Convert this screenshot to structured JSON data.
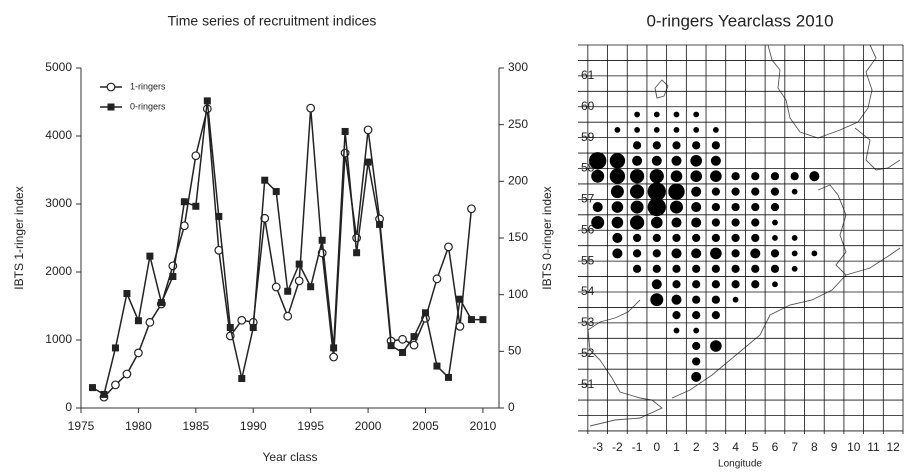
{
  "chart_data": [
    {
      "type": "line",
      "title": "Time series of recruitment indices",
      "xlabel": "Year class",
      "ylabel": "IBTS 1-ringer index",
      "y2label": "IBTS 0-ringer index",
      "x": [
        1976,
        1977,
        1978,
        1979,
        1980,
        1981,
        1982,
        1983,
        1984,
        1985,
        1986,
        1987,
        1988,
        1989,
        1990,
        1991,
        1992,
        1993,
        1994,
        1995,
        1996,
        1997,
        1998,
        1999,
        2000,
        2001,
        2002,
        2003,
        2004,
        2005,
        2006,
        2007,
        2008,
        2009,
        2010
      ],
      "series": [
        {
          "name": "1-ringers",
          "color": "#222222",
          "marker": "circle",
          "axis": "y",
          "values": [
            null,
            160,
            340,
            500,
            810,
            1260,
            1530,
            2090,
            2680,
            3710,
            4400,
            2320,
            1060,
            1290,
            1260,
            2790,
            1780,
            1350,
            1870,
            4410,
            2280,
            750,
            3750,
            2500,
            4090,
            2780,
            985,
            1010,
            925,
            1320,
            1900,
            2370,
            1200,
            2930,
            null
          ]
        },
        {
          "name": "0-ringers",
          "color": "#222222",
          "marker": "square",
          "axis": "y2",
          "values": [
            18,
            12,
            53,
            101,
            77,
            134,
            93,
            116,
            182,
            178,
            271,
            169,
            71,
            26,
            71,
            201,
            191,
            103,
            127,
            107,
            148,
            53,
            244,
            137,
            217,
            162,
            55,
            49,
            63,
            84,
            37,
            27,
            96,
            78,
            78
          ]
        }
      ],
      "xlim": [
        1975,
        2011.4
      ],
      "xticks": [
        1975,
        1980,
        1985,
        1990,
        1995,
        2000,
        2005,
        2010
      ],
      "ylim": [
        0,
        5000
      ],
      "yticks": [
        0,
        1000,
        2000,
        3000,
        4000,
        5000
      ],
      "y2lim": [
        0,
        300
      ],
      "y2ticks": [
        0,
        50,
        100,
        150,
        200,
        250,
        300
      ],
      "legend": "upper left"
    },
    {
      "type": "bubble",
      "title": "0-ringers   Yearclass 2010",
      "xlabel": "Longitude",
      "color": "#000000",
      "xlim": [
        -4,
        12.5
      ],
      "ylim": [
        49.4,
        62
      ],
      "xticks": [
        -3,
        -2,
        -1,
        0,
        1,
        2,
        3,
        4,
        5,
        6,
        7,
        8,
        9,
        10,
        11,
        12
      ],
      "yticks": [
        51,
        52,
        53,
        54,
        55,
        56,
        57,
        58,
        59,
        60,
        61
      ],
      "points": [
        {
          "x": -1,
          "y": 59.75,
          "size": 1
        },
        {
          "x": 0,
          "y": 59.75,
          "size": 1
        },
        {
          "x": 1,
          "y": 59.75,
          "size": 1
        },
        {
          "x": 2,
          "y": 59.75,
          "size": 1
        },
        {
          "x": -2,
          "y": 59.25,
          "size": 1
        },
        {
          "x": -1,
          "y": 59.25,
          "size": 1
        },
        {
          "x": 0,
          "y": 59.25,
          "size": 1
        },
        {
          "x": 1,
          "y": 59.25,
          "size": 1
        },
        {
          "x": 2,
          "y": 59.25,
          "size": 1
        },
        {
          "x": 3,
          "y": 59.25,
          "size": 1
        },
        {
          "x": -1,
          "y": 58.75,
          "size": 2
        },
        {
          "x": 0,
          "y": 58.75,
          "size": 2
        },
        {
          "x": 1,
          "y": 58.75,
          "size": 2
        },
        {
          "x": 2,
          "y": 58.75,
          "size": 2
        },
        {
          "x": 3,
          "y": 58.75,
          "size": 2
        },
        {
          "x": -3,
          "y": 58.25,
          "size": 9
        },
        {
          "x": -2,
          "y": 58.25,
          "size": 7
        },
        {
          "x": -1,
          "y": 58.25,
          "size": 3
        },
        {
          "x": 0,
          "y": 58.25,
          "size": 3
        },
        {
          "x": 1,
          "y": 58.25,
          "size": 3
        },
        {
          "x": 2,
          "y": 58.25,
          "size": 4
        },
        {
          "x": 3,
          "y": 58.25,
          "size": 3
        },
        {
          "x": -3,
          "y": 57.75,
          "size": 5
        },
        {
          "x": -2,
          "y": 57.75,
          "size": 7
        },
        {
          "x": -1,
          "y": 57.75,
          "size": 6
        },
        {
          "x": 0,
          "y": 57.75,
          "size": 6
        },
        {
          "x": 1,
          "y": 57.75,
          "size": 4
        },
        {
          "x": 2,
          "y": 57.75,
          "size": 4
        },
        {
          "x": 3,
          "y": 57.75,
          "size": 4
        },
        {
          "x": 4,
          "y": 57.75,
          "size": 2
        },
        {
          "x": 5,
          "y": 57.75,
          "size": 2
        },
        {
          "x": 6,
          "y": 57.75,
          "size": 2
        },
        {
          "x": 7,
          "y": 57.75,
          "size": 2
        },
        {
          "x": 8,
          "y": 57.75,
          "size": 3
        },
        {
          "x": -2,
          "y": 57.25,
          "size": 5
        },
        {
          "x": -1,
          "y": 57.25,
          "size": 6
        },
        {
          "x": 0,
          "y": 57.25,
          "size": 10
        },
        {
          "x": 1,
          "y": 57.25,
          "size": 8
        },
        {
          "x": 2,
          "y": 57.25,
          "size": 3
        },
        {
          "x": 3,
          "y": 57.25,
          "size": 2
        },
        {
          "x": 4,
          "y": 57.25,
          "size": 2
        },
        {
          "x": 5,
          "y": 57.25,
          "size": 2
        },
        {
          "x": 6,
          "y": 57.25,
          "size": 2
        },
        {
          "x": 7,
          "y": 57.25,
          "size": 1
        },
        {
          "x": -3,
          "y": 56.75,
          "size": 3
        },
        {
          "x": -2,
          "y": 56.75,
          "size": 4
        },
        {
          "x": -1,
          "y": 56.75,
          "size": 5
        },
        {
          "x": 0,
          "y": 56.75,
          "size": 10
        },
        {
          "x": 1,
          "y": 56.75,
          "size": 5
        },
        {
          "x": 2,
          "y": 56.75,
          "size": 3
        },
        {
          "x": 3,
          "y": 56.75,
          "size": 2
        },
        {
          "x": 4,
          "y": 56.75,
          "size": 2
        },
        {
          "x": 5,
          "y": 56.75,
          "size": 2
        },
        {
          "x": 6,
          "y": 56.75,
          "size": 2
        },
        {
          "x": -3,
          "y": 56.25,
          "size": 5
        },
        {
          "x": -2,
          "y": 56.25,
          "size": 4
        },
        {
          "x": -1,
          "y": 56.25,
          "size": 6
        },
        {
          "x": 0,
          "y": 56.25,
          "size": 4
        },
        {
          "x": 1,
          "y": 56.25,
          "size": 3
        },
        {
          "x": 2,
          "y": 56.25,
          "size": 3
        },
        {
          "x": 3,
          "y": 56.25,
          "size": 2
        },
        {
          "x": 4,
          "y": 56.25,
          "size": 2
        },
        {
          "x": 5,
          "y": 56.25,
          "size": 2
        },
        {
          "x": 6,
          "y": 56.25,
          "size": 1
        },
        {
          "x": -2,
          "y": 55.75,
          "size": 3
        },
        {
          "x": -1,
          "y": 55.75,
          "size": 2
        },
        {
          "x": 0,
          "y": 55.75,
          "size": 2
        },
        {
          "x": 1,
          "y": 55.75,
          "size": 2
        },
        {
          "x": 2,
          "y": 55.75,
          "size": 2
        },
        {
          "x": 3,
          "y": 55.75,
          "size": 2
        },
        {
          "x": 4,
          "y": 55.75,
          "size": 2
        },
        {
          "x": 5,
          "y": 55.75,
          "size": 2
        },
        {
          "x": 6,
          "y": 55.75,
          "size": 1
        },
        {
          "x": 7,
          "y": 55.75,
          "size": 1
        },
        {
          "x": -2,
          "y": 55.25,
          "size": 3
        },
        {
          "x": -1,
          "y": 55.25,
          "size": 2
        },
        {
          "x": 0,
          "y": 55.25,
          "size": 2
        },
        {
          "x": 1,
          "y": 55.25,
          "size": 3
        },
        {
          "x": 2,
          "y": 55.25,
          "size": 3
        },
        {
          "x": 3,
          "y": 55.25,
          "size": 4
        },
        {
          "x": 4,
          "y": 55.25,
          "size": 2
        },
        {
          "x": 5,
          "y": 55.25,
          "size": 3
        },
        {
          "x": 6,
          "y": 55.25,
          "size": 2
        },
        {
          "x": 7,
          "y": 55.25,
          "size": 1
        },
        {
          "x": 8,
          "y": 55.25,
          "size": 1
        },
        {
          "x": -1,
          "y": 54.75,
          "size": 2
        },
        {
          "x": 0,
          "y": 54.75,
          "size": 2
        },
        {
          "x": 1,
          "y": 54.75,
          "size": 2
        },
        {
          "x": 2,
          "y": 54.75,
          "size": 2
        },
        {
          "x": 3,
          "y": 54.75,
          "size": 2
        },
        {
          "x": 4,
          "y": 54.75,
          "size": 2
        },
        {
          "x": 5,
          "y": 54.75,
          "size": 2
        },
        {
          "x": 6,
          "y": 54.75,
          "size": 2
        },
        {
          "x": 7,
          "y": 54.75,
          "size": 1
        },
        {
          "x": 0,
          "y": 54.25,
          "size": 3
        },
        {
          "x": 1,
          "y": 54.25,
          "size": 2
        },
        {
          "x": 2,
          "y": 54.25,
          "size": 2
        },
        {
          "x": 3,
          "y": 54.25,
          "size": 2
        },
        {
          "x": 4,
          "y": 54.25,
          "size": 2
        },
        {
          "x": 5,
          "y": 54.25,
          "size": 2
        },
        {
          "x": 6,
          "y": 54.25,
          "size": 1
        },
        {
          "x": 0,
          "y": 53.75,
          "size": 5
        },
        {
          "x": 1,
          "y": 53.75,
          "size": 3
        },
        {
          "x": 2,
          "y": 53.75,
          "size": 2
        },
        {
          "x": 3,
          "y": 53.75,
          "size": 2
        },
        {
          "x": 4,
          "y": 53.75,
          "size": 1
        },
        {
          "x": 1,
          "y": 53.25,
          "size": 2
        },
        {
          "x": 2,
          "y": 53.25,
          "size": 2
        },
        {
          "x": 3,
          "y": 53.25,
          "size": 2
        },
        {
          "x": 1,
          "y": 52.75,
          "size": 1
        },
        {
          "x": 2,
          "y": 52.75,
          "size": 1
        },
        {
          "x": 2,
          "y": 52.25,
          "size": 2
        },
        {
          "x": 3,
          "y": 52.25,
          "size": 4
        },
        {
          "x": 2,
          "y": 51.75,
          "size": 2
        },
        {
          "x": 2,
          "y": 51.25,
          "size": 3
        }
      ]
    }
  ]
}
